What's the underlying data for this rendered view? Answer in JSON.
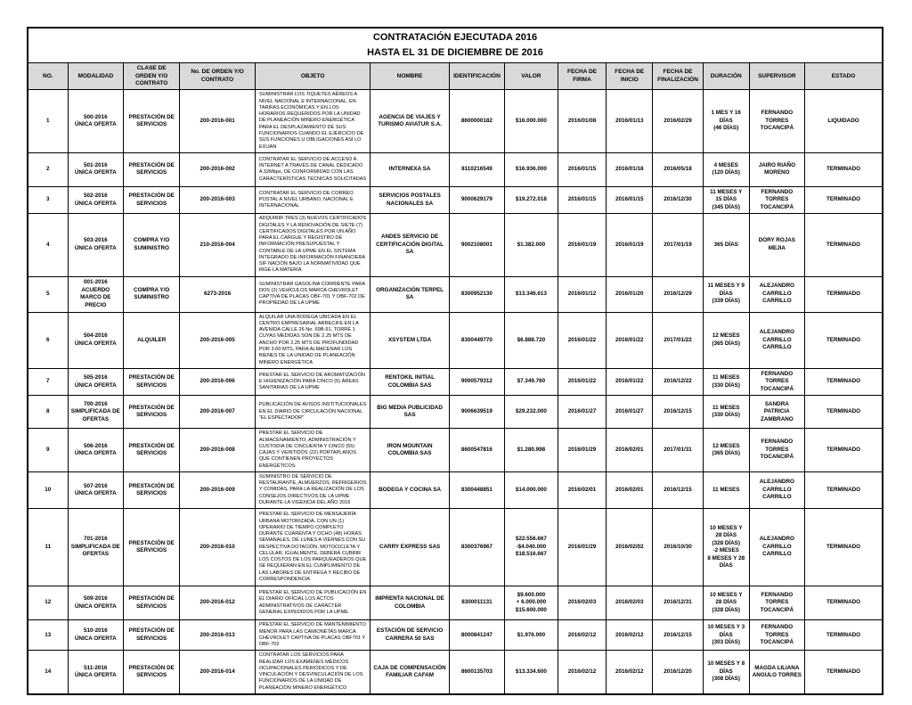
{
  "title": {
    "line1": "CONTRATACIÓN EJECUTADA 2016",
    "line2": "HASTA EL 31 DE DICIEMBRE DE 2016"
  },
  "colors": {
    "header_bg": "#d9d9d9",
    "border": "#000000",
    "page_bg": "#ffffff",
    "text": "#000000"
  },
  "table": {
    "columns": [
      "NO.",
      "MODALIDAD",
      "CLASE DE ORDEN Y/O CONTRATO",
      "No. DE ORDEN Y/O CONTRATO",
      "OBJETO",
      "NOMBRE",
      "IDENTIFICACIÓN",
      "VALOR",
      "FECHA DE FIRMA",
      "FECHA DE INICIO",
      "FECHA DE FINALIZACIÓN",
      "DURACIÓN",
      "SUPERVISOR",
      "ESTADO"
    ],
    "column_keys": [
      "no",
      "modalidad",
      "clase",
      "orden",
      "objeto",
      "nombre",
      "identificacion",
      "valor",
      "firma",
      "inicio",
      "fin",
      "duracion",
      "supervisor",
      "estado"
    ],
    "rows": [
      [
        "1",
        "500-2016\nÚNICA OFERTA",
        "PRESTACIÓN DE SERVICIOS",
        "200-2016-001",
        "SUMINISTRAR LOS TIQUETES AÉREOS A NIVEL NACIONAL E INTERNACIONAL, EN TARIFAS ECONÓMICAS Y EN LOS HORARIOS REQUERIDOS POR LA UNIDAD DE PLANEACIÓN MINERO ENERGÉTICA PARA EL DESPLAZAMIENTO DE SUS FUNCIONARIOS CUANDO EL EJERCICIO DE SUS FUNCIONES U OBLIGACIONES ASÍ LO EXIJAN",
        "AGENCIA DE VIAJES Y TURISMO AVIATUR S.A.",
        "8600000182",
        "$16.000.000",
        "2016/01/08",
        "2016/01/13",
        "2016/02/29",
        "1 MES Y 16 DÍAS\n(46 DÍAS)",
        "FERNANDO TORRES TOCANCIPÁ",
        "LIQUIDADO"
      ],
      [
        "2",
        "501-2016\nÚNICA OFERTA",
        "PRESTACIÓN DE SERVICIOS",
        "200-2016-002",
        "CONTRATAR EL SERVICIO DE ACCESO A INTERNET A TRAVÉS DE CANAL DEDICADO A 32Mbps, DE CONFORMIDAD CON LAS CARACTERÍSTICAS TÉCNICAS SOLICITADAS",
        "INTERNEXA SA",
        "8110216549",
        "$16.936.000",
        "2016/01/15",
        "2016/01/18",
        "2016/05/18",
        "4 MESES\n(120 DÍAS)",
        "JAIRO RIAÑO MORENO",
        "TERMINADO"
      ],
      [
        "3",
        "502-2016\nÚNICA OFERTA",
        "PRESTACIÓN DE SERVICIOS",
        "200-2016-003",
        "CONTRATAR EL SERVICIO DE CORREO POSTAL A NIVEL URBANO, NACIONAL E INTERNACIONAL",
        "SERVICIOS POSTALES NACIONALES SA",
        "9000629179",
        "$19.272.018",
        "2016/01/15",
        "2016/01/15",
        "2016/12/30",
        "11 MESES Y 15 DÍAS\n(345 DÍAS)",
        "FERNANDO TORRES TOCANCIPÁ",
        "TERMINADO"
      ],
      [
        "4",
        "503-2016\nÚNICA OFERTA",
        "COMPRA Y/O SUMINISTRO",
        "210-2016-004",
        "ADQUIRIR TRES (3) NUEVOS CERTIFICADOS DIGITALES Y LA RENOVACIÓN DE SIETE (7) CERTIFICADOS DIGITALES POR UN AÑO PARA EL CARGUE Y REGISTRO DE INFORMACIÓN PRESUPUESTAL Y CONTABLE DE LA UPME EN EL SISTEMA INTEGRADO DE INFORMACIÓN FINANCIERA SIF NACIÓN BAJO LA NORMATIVIDAD QUE RIGE LA MATERIA",
        "ANDES SERVICIO DE CERTIFICACIÓN DIGITAL SA",
        "9002108001",
        "$1.382.000",
        "2016/01/19",
        "2016/01/19",
        "2017/01/19",
        "365 DÍAS",
        "DORY ROJAS MEJIA",
        "TERMINADO"
      ],
      [
        "5",
        "001-2016\nACUERDO MARCO DE PRECIO",
        "COMPRA Y/O SUMINISTRO",
        "6273-2016",
        "SUMINISTRAR GASOLINA CORRIENTE PARA DOS (2) VEHÍCULOS MARCA CHEVROLET CAPTIVA DE PLACAS OBF-701 Y OBF-702 DE PROPIEDAD DE LA UPME",
        "ORGANIZACIÓN TERPEL SA",
        "8300952130",
        "$13.346.613",
        "2016/01/12",
        "2016/01/20",
        "2016/12/29",
        "11 MESES Y 9 DÍAS\n(339 DÍAS)",
        "ALEJANDRO CARRILLO CARRILLO",
        "TERMINADO"
      ],
      [
        "6",
        "504-2016\nÚNICA OFERTA",
        "ALQUILER",
        "200-2016-005",
        "ALQUILAR UNA BODEGA UBICADA EN EL CENTRO EMPRESARIAL ARRECIFE EN LA AVENIDA CALLE 26 No. 69B-91, TORRE 1 CUYAS MEDIDAS SON DE 2.25 MTS DE ANCHO POR 2.25 MTS DE PROFUNDIDAD POR 3.60 MTS, PARA ALMACENAR LOS BIENES DE LA UNIDAD DE PLANEACIÓN MINERO ENERGÉTICA",
        "XSYSTEM LTDA",
        "8300449770",
        "$6.888.720",
        "2016/01/22",
        "2016/01/22",
        "2017/01/22",
        "12 MESES\n(365 DÍAS)",
        "ALEJANDRO CARRILLO CARRILLO",
        "TERMINADO"
      ],
      [
        "7",
        "505-2016\nÚNICA OFERTA",
        "PRESTACIÓN DE SERVICIOS",
        "200-2016-006",
        "PRESTAR EL SERVICIO DE AROMATIZACIÓN E HIGIENIZACIÓN PARA CINCO (5) ÁREAS SANITARIAS DE LA UPME",
        "RENTOKIL INITIAL COLOMBIA SAS",
        "9000579312",
        "$7.349.760",
        "2016/01/22",
        "2016/01/22",
        "2016/12/22",
        "11 MESES\n(330 DÍAS)",
        "FERNANDO TORRES TOCANCIPÁ",
        "TERMINADO"
      ],
      [
        "8",
        "700-2016\nSIMPLIFICADA DE OFERTAS",
        "PRESTACIÓN DE SERVICIOS",
        "200-2016-007",
        "PUBLICACIÓN DE AVISOS INSTITUCIONALES EN EL DIARIO DE CIRCULACIÓN NACIONAL \"EL ESPECTADOR\"",
        "BIG MEDIA PUBLICIDAD SAS",
        "9006639519",
        "$29.232.000",
        "2016/01/27",
        "2016/01/27",
        "2016/12/15",
        "11 MESES\n(330 DÍAS)",
        "SANDRA PATRICIA ZAMBRANO",
        "TERMINADO"
      ],
      [
        "9",
        "506-2016\nÚNICA OFERTA",
        "PRESTACIÓN DE SERVICIOS",
        "200-2016-008",
        "PRESTAR EL SERVICIO DE ALMACENAMIENTO, ADMINISTRACIÓN Y CUSTODIA DE CINCUENTA Y CINCO (55) CAJAS Y VEINTIDÓS (22) PORTAPLANOS QUE CONTIENEN PROYECTOS ENERGÉTICOS",
        "IRON MOUNTAIN COLOMBIA SAS",
        "8600547816",
        "$1.280.998",
        "2016/01/29",
        "2016/02/01",
        "2017/01/31",
        "12 MESES\n(365 DÍAS)",
        "FERNANDO TORRES TOCANCIPÁ",
        "TERMINADO"
      ],
      [
        "10",
        "507-2016\nÚNICA OFERTA",
        "PRESTACIÓN DE SERVICIOS",
        "200-2016-009",
        "SUMINISTRO DE SERVICIO DE RESTAURANTE, ALMUERZOS, REFRIGERIOS Y COMIDAS, PARA LA REALIZACIÓN DE LOS CONSEJOS DIRECTIVOS DE LA UPME DURANTE LA VIGENCIA DEL AÑO 2016",
        "BODEGA Y COCINA SA",
        "8300448851",
        "$14.000.000",
        "2016/02/01",
        "2016/02/01",
        "2016/12/15",
        "11 MESES",
        "ALEJANDRO CARRILLO CARRILLO",
        "TERMINADO"
      ],
      [
        "11",
        "701-2016\nSIMPLIFICADA DE OFERTAS",
        "PRESTACIÓN DE SERVICIOS",
        "200-2016-010",
        "PRESTAR EL SERVICIO DE MENSAJERÍA URBANA MOTORIZADA, CON UN (1) OPERARIO DE TIEMPO COMPLETO DURANTE CUARENTA Y OCHO (48) HORAS SEMANALES, DE LUNES A VIERNES CON SU RESPECTIVA DOTACIÓN, MOTOCICLETA Y CELULAR, IGUALMENTE, DEBERÁ CUBRIR LOS COSTOS DE LOS PARQUEADEROS QUE SE REQUIERAN EN EL CUMPLIMIENTO DE LAS LABORES DE ENTREGA Y RECIBO DE CORRESPONDENCIA",
        "CARRY EXPRESS SAS",
        "8300376967",
        "$22.556.667\n-$4.040.000\n$18.516.667",
        "2016/01/29",
        "2016/02/02",
        "2016/10/30",
        "10 MESES Y 28 DÍAS\n(328 DÍAS)\n-2 MESES\n8 MESES Y 28 DÍAS",
        "ALEJANDRO CARRILLO CARRILLO",
        "TERMINADO"
      ],
      [
        "12",
        "509-2016\nÚNICA OFERTA",
        "PRESTACIÓN DE SERVICIOS",
        "200-2016-012",
        "PRESTAR EL SERVICIO DE PUBLICACIÓN EN EL DIARIO OFICIAL LOS ACTOS ADMINISTRATIVOS DE CARÁCTER GENERAL EXPEDIDOS POR LA UPME",
        "IMPRENTA NACIONAL DE COLOMBIA",
        "8300011131",
        "$9.600.000\n+ 6.000.000\n$15.600.000",
        "2016/02/03",
        "2016/02/03",
        "2016/12/31",
        "10 MESES Y 28 DÍAS\n(328 DÍAS)",
        "FERNANDO TORRES TOCANCIPÁ",
        "TERMINADO"
      ],
      [
        "13",
        "510-2016\nÚNICA OFERTA",
        "PRESTACIÓN DE SERVICIOS",
        "200-2016-013",
        "PRESTAR EL SERVICIO DE MANTENIMIENTO MENOR PARA LAS CAMIONETAS MARCA CHEVROLET CAPTIVA DE PLACAS OBF701 Y OBF-702",
        "ESTACIÓN DE SERVICIO CARRERA 50 SAS",
        "8000841247",
        "$1.976.000",
        "2016/02/12",
        "2016/02/12",
        "2016/12/15",
        "10 MESES Y 3 DÍAS\n(303 DÍAS)",
        "FERNANDO TORRES TOCANCIPÁ",
        "TERMINADO"
      ],
      [
        "14",
        "511-2016\nÚNICA OFERTA",
        "PRESTACIÓN DE SERVICIOS",
        "200-2016-014",
        "CONTRATAR LOS SERVICIOS PARA REALIZAR LOS EXÁMENES MÉDICOS OCUPACIONALES PERIÓDICOS Y DE VINCULACIÓN Y DESVINCULACIÓN DE LOS FUNCIONARIOS DE LA UNIDAD DE PLANEACIÓN MINERO ENERGÉTICO",
        "CAJA DE COMPENSACIÓN FAMILIAR CAFAM",
        "8600135703",
        "$13.334.600",
        "2016/02/12",
        "2016/02/12",
        "2016/12/20",
        "10 MESES Y 8 DÍAS\n(308 DÍAS)",
        "MAGDA LILIANA ANGULO TORRES",
        "TERMINADO"
      ]
    ]
  }
}
